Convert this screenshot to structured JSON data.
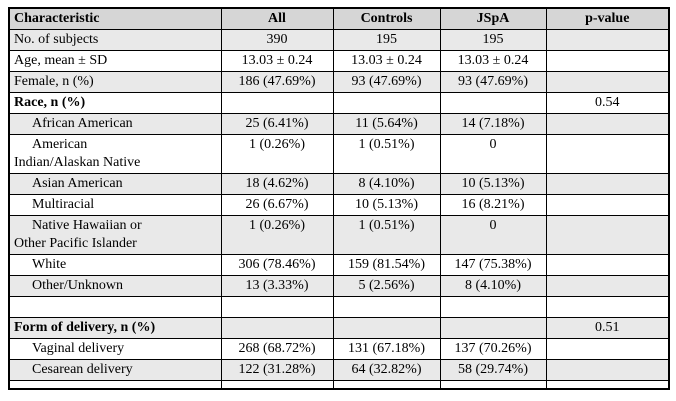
{
  "colors": {
    "header_bg": "#d6d6d6",
    "shaded_row_bg": "#e9e9e9",
    "border": "#000000",
    "text": "#000000"
  },
  "table": {
    "columns": [
      {
        "label": "Characteristic"
      },
      {
        "label": "All"
      },
      {
        "label": "Controls"
      },
      {
        "label": "JSpA"
      },
      {
        "label": "p-value"
      }
    ],
    "rows": [
      {
        "label": "No. of subjects",
        "indent": false,
        "bold": false,
        "shaded": true,
        "cells": [
          "390",
          "195",
          "195",
          ""
        ]
      },
      {
        "label": "Age, mean ± SD",
        "indent": false,
        "bold": false,
        "shaded": false,
        "cells": [
          "13.03 ± 0.24",
          "13.03 ± 0.24",
          "13.03 ± 0.24",
          ""
        ]
      },
      {
        "label": "Female, n (%)",
        "indent": false,
        "bold": false,
        "shaded": true,
        "cells": [
          "186 (47.69%)",
          "93 (47.69%)",
          "93 (47.69%)",
          ""
        ]
      },
      {
        "label": "Race, n (%)",
        "indent": false,
        "bold": true,
        "shaded": false,
        "cells": [
          "",
          "",
          "",
          "0.54"
        ]
      },
      {
        "label": "African American",
        "indent": true,
        "bold": false,
        "shaded": true,
        "cells": [
          "25 (6.41%)",
          "11 (5.64%)",
          "14 (7.18%)",
          ""
        ]
      },
      {
        "label": "American\nIndian/Alaskan Native",
        "indent": true,
        "bold": false,
        "shaded": false,
        "cells": [
          "1 (0.26%)",
          "1 (0.51%)",
          "0",
          ""
        ]
      },
      {
        "label": "Asian American",
        "indent": true,
        "bold": false,
        "shaded": true,
        "cells": [
          "18 (4.62%)",
          "8 (4.10%)",
          "10 (5.13%)",
          ""
        ]
      },
      {
        "label": "Multiracial",
        "indent": true,
        "bold": false,
        "shaded": false,
        "cells": [
          "26 (6.67%)",
          "10 (5.13%)",
          "16 (8.21%)",
          ""
        ]
      },
      {
        "label": "Native Hawaiian or\nOther Pacific Islander",
        "indent": true,
        "bold": false,
        "shaded": true,
        "cells": [
          "1 (0.26%)",
          "1 (0.51%)",
          "0",
          ""
        ]
      },
      {
        "label": "White",
        "indent": true,
        "bold": false,
        "shaded": false,
        "cells": [
          "306 (78.46%)",
          "159 (81.54%)",
          "147 (75.38%)",
          ""
        ]
      },
      {
        "label": "Other/Unknown",
        "indent": true,
        "bold": false,
        "shaded": true,
        "cells": [
          "13 (3.33%)",
          "5 (2.56%)",
          "8 (4.10%)",
          ""
        ]
      },
      {
        "label": "",
        "indent": false,
        "bold": false,
        "shaded": false,
        "cells": [
          "",
          "",
          "",
          ""
        ]
      },
      {
        "label": "Form of delivery, n (%)",
        "indent": false,
        "bold": true,
        "shaded": true,
        "cells": [
          "",
          "",
          "",
          "0.51"
        ]
      },
      {
        "label": "Vaginal delivery",
        "indent": true,
        "bold": false,
        "shaded": false,
        "cells": [
          "268 (68.72%)",
          "131 (67.18%)",
          "137 (70.26%)",
          ""
        ]
      },
      {
        "label": "Cesarean delivery",
        "indent": true,
        "bold": false,
        "shaded": true,
        "cells": [
          "122 (31.28%)",
          "64 (32.82%)",
          "58 (29.74%)",
          ""
        ]
      },
      {
        "label": "",
        "indent": false,
        "bold": false,
        "shaded": false,
        "thin": true,
        "cells": [
          "",
          "",
          "",
          ""
        ]
      }
    ]
  }
}
